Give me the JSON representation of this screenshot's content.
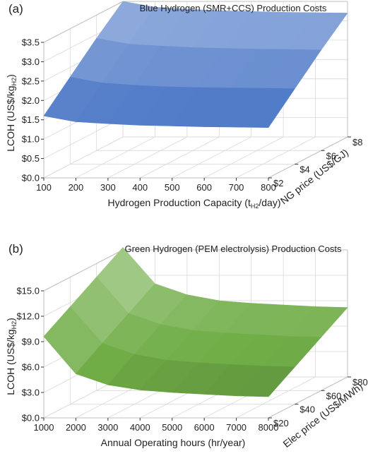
{
  "chart_data": [
    {
      "type": "surface3d",
      "panel": "(a)",
      "title": "Blue Hydrogen (SMR+CCS) Production Costs",
      "xlabel_parts": [
        "Hydrogen Production Capacity (t",
        "H2",
        "/day)"
      ],
      "ylabel_parts": [
        "LCOH (US$/kg",
        "H2",
        ")"
      ],
      "zlabel": "NG price (US$/GJ)",
      "x_ticks": [
        "100",
        "200",
        "300",
        "400",
        "500",
        "600",
        "700",
        "800"
      ],
      "y_ticks": [
        "$0.0",
        "$0.5",
        "$1.0",
        "$1.5",
        "$2.0",
        "$2.5",
        "$3.0",
        "$3.5"
      ],
      "z_ticks": [
        "$2",
        "$4",
        "$6",
        "$8"
      ],
      "x": [
        100,
        200,
        300,
        400,
        500,
        600,
        700,
        800
      ],
      "depth": [
        2,
        4,
        6,
        8
      ],
      "ylim": [
        0,
        3.5
      ],
      "series": [
        {
          "depth_value": 2,
          "values": [
            1.6,
            1.45,
            1.4,
            1.36,
            1.34,
            1.32,
            1.31,
            1.3
          ]
        },
        {
          "depth_value": 4,
          "values": [
            2.25,
            2.1,
            2.04,
            2.0,
            1.98,
            1.97,
            1.96,
            1.95
          ]
        },
        {
          "depth_value": 6,
          "values": [
            2.9,
            2.75,
            2.7,
            2.66,
            2.64,
            2.62,
            2.61,
            2.6
          ]
        },
        {
          "depth_value": 8,
          "values": [
            3.5,
            3.35,
            3.3,
            3.26,
            3.24,
            3.22,
            3.21,
            3.2
          ]
        }
      ],
      "color": "#4472c4"
    },
    {
      "type": "surface3d",
      "panel": "(b)",
      "title": "Green Hydrogen (PEM electrolysis) Production Costs",
      "xlabel_parts": [
        "Annual Operating hours (hr/year)"
      ],
      "ylabel_parts": [
        "LCOH (US$/kg",
        "H2",
        ")"
      ],
      "zlabel": "Elec price (US$/MWh)",
      "x_ticks": [
        "1000",
        "2000",
        "3000",
        "4000",
        "5000",
        "6000",
        "7000",
        "8000"
      ],
      "y_ticks": [
        "$0.0",
        "$3.0",
        "$6.0",
        "$9.0",
        "$12.0",
        "$15.0"
      ],
      "z_ticks": [
        "$20",
        "$40",
        "$60",
        "$80"
      ],
      "x": [
        1000,
        2000,
        3000,
        4000,
        5000,
        6000,
        7000,
        8000
      ],
      "depth": [
        20,
        40,
        60,
        80
      ],
      "ylim": [
        0,
        15
      ],
      "series": [
        {
          "depth_value": 20,
          "values": [
            9.6,
            5.2,
            3.9,
            3.3,
            3.0,
            2.8,
            2.6,
            2.5
          ]
        },
        {
          "depth_value": 40,
          "values": [
            11.5,
            7.2,
            5.9,
            5.2,
            4.9,
            4.7,
            4.5,
            4.4
          ]
        },
        {
          "depth_value": 60,
          "values": [
            13.4,
            9.1,
            7.8,
            7.1,
            6.8,
            6.6,
            6.4,
            6.3
          ]
        },
        {
          "depth_value": 80,
          "values": [
            15.3,
            11.0,
            9.7,
            9.0,
            8.7,
            8.5,
            8.3,
            8.2
          ]
        }
      ],
      "color": "#70ad47"
    }
  ]
}
